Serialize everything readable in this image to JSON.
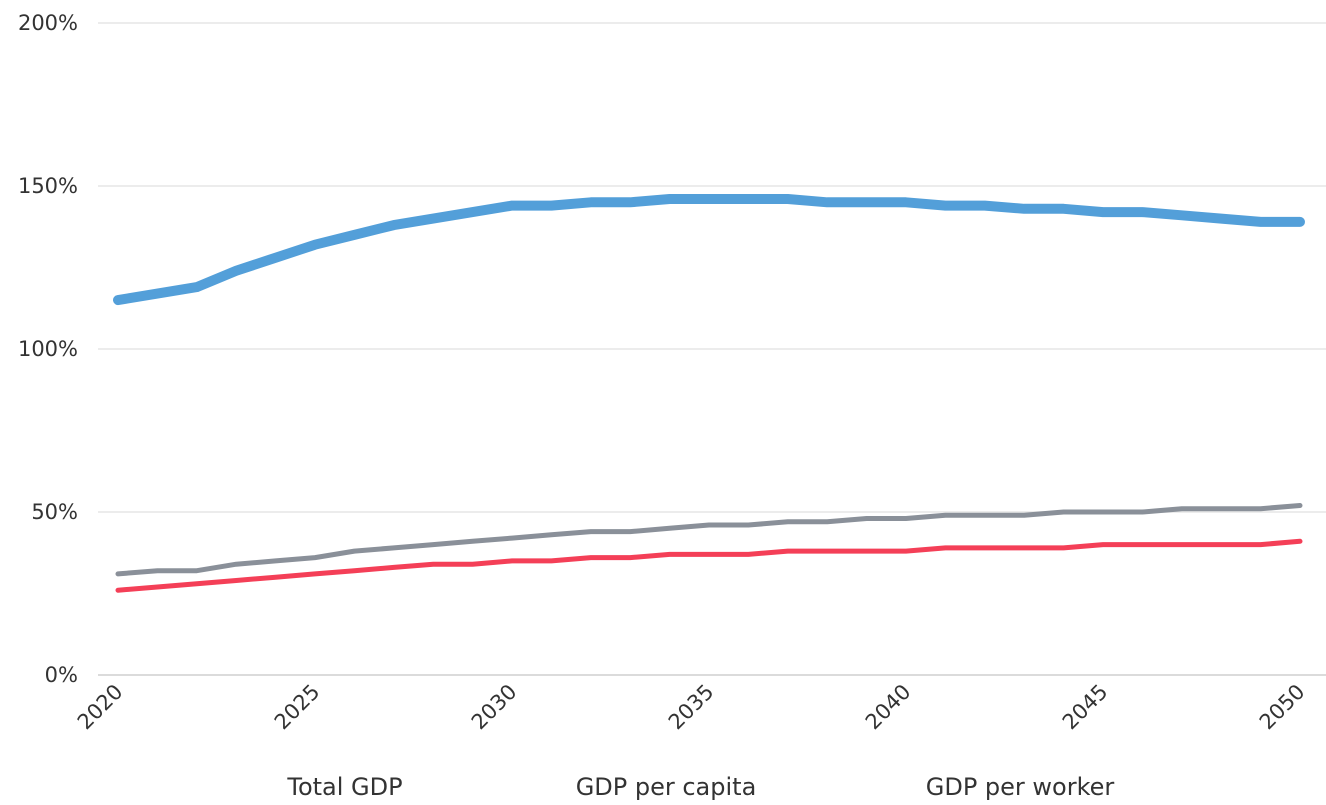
{
  "chart_data": {
    "type": "line",
    "title": "",
    "xlabel": "",
    "ylabel": "",
    "x": [
      2020,
      2021,
      2022,
      2023,
      2024,
      2025,
      2026,
      2027,
      2028,
      2029,
      2030,
      2031,
      2032,
      2033,
      2034,
      2035,
      2036,
      2037,
      2038,
      2039,
      2040,
      2041,
      2042,
      2043,
      2044,
      2045,
      2046,
      2047,
      2048,
      2049,
      2050
    ],
    "xlim": [
      2020,
      2050
    ],
    "ylim": [
      0,
      200
    ],
    "x_ticks": [
      2020,
      2025,
      2030,
      2035,
      2040,
      2045,
      2050
    ],
    "y_ticks": [
      {
        "value": 0,
        "label": "0%"
      },
      {
        "value": 50,
        "label": "50%"
      },
      {
        "value": 100,
        "label": "100%"
      },
      {
        "value": 150,
        "label": "150%"
      },
      {
        "value": 200,
        "label": "200%"
      }
    ],
    "grid": true,
    "legend_position": "bottom",
    "series": [
      {
        "name": "Total GDP",
        "color": "#539fd9",
        "values": [
          115,
          117,
          119,
          124,
          128,
          132,
          135,
          138,
          140,
          142,
          144,
          144,
          145,
          145,
          146,
          146,
          146,
          146,
          145,
          145,
          145,
          144,
          144,
          143,
          143,
          142,
          142,
          141,
          140,
          139,
          139
        ]
      },
      {
        "name": "GDP per capita",
        "color": "#8a9099",
        "values": [
          31,
          32,
          32,
          34,
          35,
          36,
          38,
          39,
          40,
          41,
          42,
          43,
          44,
          44,
          45,
          46,
          46,
          47,
          47,
          48,
          48,
          49,
          49,
          49,
          50,
          50,
          50,
          51,
          51,
          51,
          52
        ]
      },
      {
        "name": "GDP per worker",
        "color": "#f43f57",
        "values": [
          26,
          27,
          28,
          29,
          30,
          31,
          32,
          33,
          34,
          34,
          35,
          35,
          36,
          36,
          37,
          37,
          37,
          38,
          38,
          38,
          38,
          39,
          39,
          39,
          39,
          40,
          40,
          40,
          40,
          40,
          41
        ]
      }
    ]
  }
}
